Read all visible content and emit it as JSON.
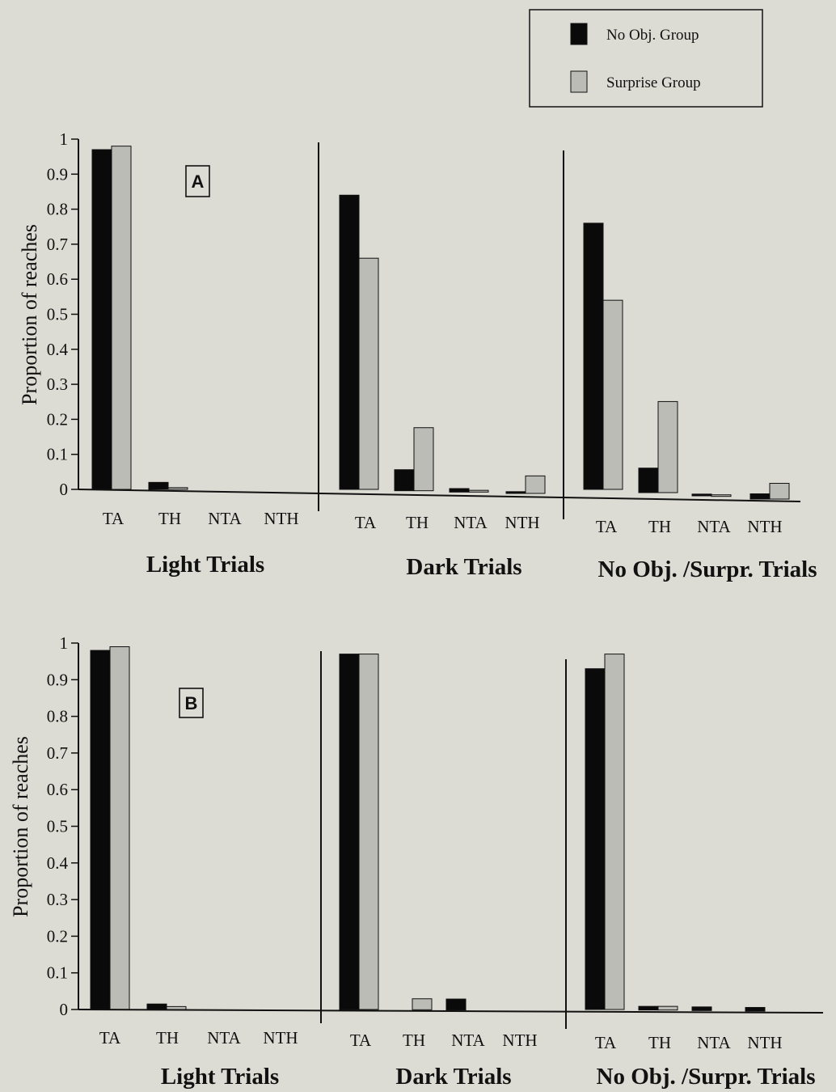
{
  "colors": {
    "background": "#dcdcd4",
    "no_obj_group": "#0a0a0a",
    "surprise_group": "#bcbcb6",
    "axis": "#111111"
  },
  "legend": {
    "items": [
      {
        "label": "No Obj. Group",
        "color": "#0a0a0a"
      },
      {
        "label": "Surprise Group",
        "color": "#bcbcb6"
      }
    ],
    "placement": "top-right"
  },
  "chart_data": [
    {
      "type": "bar",
      "panel": "A",
      "ylabel": "Proportion of reaches",
      "ylim": [
        0,
        1
      ],
      "yticks": [
        "0",
        "0.1",
        "0.2",
        "0.3",
        "0.4",
        "0.5",
        "0.6",
        "0.7",
        "0.8",
        "0.9",
        "1"
      ],
      "groups": [
        {
          "label": "Light Trials",
          "categories": [
            "TA",
            "TH",
            "NTA",
            "NTH"
          ],
          "series": [
            {
              "name": "No Obj. Group",
              "values": [
                0.97,
                0.02,
                0,
                0
              ]
            },
            {
              "name": "Surprise Group",
              "values": [
                0.98,
                0.005,
                0,
                0
              ]
            }
          ]
        },
        {
          "label": "Dark Trials",
          "categories": [
            "TA",
            "TH",
            "NTA",
            "NTH"
          ],
          "series": [
            {
              "name": "No Obj. Group",
              "values": [
                0.84,
                0.06,
                0.01,
                0.005
              ]
            },
            {
              "name": "Surprise Group",
              "values": [
                0.66,
                0.18,
                0.005,
                0.05
              ]
            }
          ]
        },
        {
          "label": "No Obj. /Surpr. Trials",
          "categories": [
            "TA",
            "TH",
            "NTA",
            "NTH"
          ],
          "series": [
            {
              "name": "No Obj. Group",
              "values": [
                0.76,
                0.07,
                0.005,
                0.015
              ]
            },
            {
              "name": "Surprise Group",
              "values": [
                0.54,
                0.26,
                0.003,
                0.045
              ]
            }
          ]
        }
      ]
    },
    {
      "type": "bar",
      "panel": "B",
      "ylabel": "Proportion of reaches",
      "ylim": [
        0,
        1
      ],
      "yticks": [
        "0",
        "0.1",
        "0.2",
        "0.3",
        "0.4",
        "0.5",
        "0.6",
        "0.7",
        "0.8",
        "0.9",
        "1"
      ],
      "groups": [
        {
          "label": "Light Trials",
          "categories": [
            "TA",
            "TH",
            "NTA",
            "NTH"
          ],
          "series": [
            {
              "name": "No Obj. Group",
              "values": [
                0.98,
                0.015,
                0,
                0
              ]
            },
            {
              "name": "Surprise Group",
              "values": [
                0.99,
                0.008,
                0,
                0
              ]
            }
          ]
        },
        {
          "label": "Dark Trials",
          "categories": [
            "TA",
            "TH",
            "NTA",
            "NTH"
          ],
          "series": [
            {
              "name": "No Obj. Group",
              "values": [
                0.97,
                0,
                0.03,
                0
              ]
            },
            {
              "name": "Surprise Group",
              "values": [
                0.97,
                0.03,
                0,
                0
              ]
            }
          ]
        },
        {
          "label": "No Obj. /Surpr. Trials",
          "categories": [
            "TA",
            "TH",
            "NTA",
            "NTH"
          ],
          "series": [
            {
              "name": "No Obj. Group",
              "values": [
                0.93,
                0.01,
                0.01,
                0.01
              ]
            },
            {
              "name": "Surprise Group",
              "values": [
                0.97,
                0.01,
                0,
                0
              ]
            }
          ]
        }
      ]
    }
  ]
}
